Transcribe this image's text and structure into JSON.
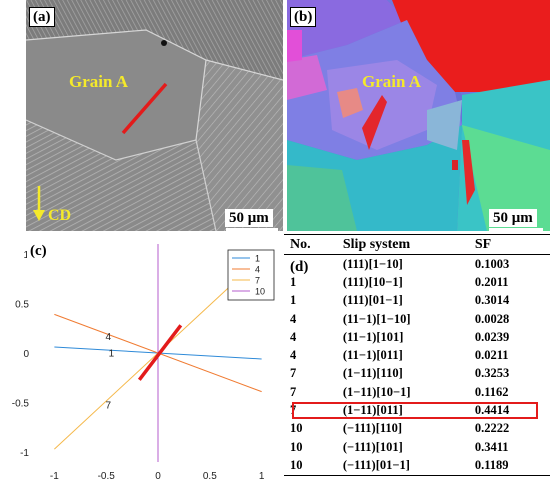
{
  "panel_a": {
    "tag": "(a)",
    "grain_label": "Grain A",
    "direction_label": "CD",
    "scale_bar": "50 μm"
  },
  "panel_b": {
    "tag": "(b)",
    "grain_label": "Grain A",
    "scale_bar": "50 μm"
  },
  "panel_c": {
    "tag": "(c)"
  },
  "chart_data": {
    "type": "line",
    "xlim": [
      -1.1,
      1.1
    ],
    "ylim": [
      -1.1,
      1.1
    ],
    "xticks": [
      "-1",
      "-0.5",
      "0",
      "0.5",
      "1"
    ],
    "yticks": [
      "-1",
      "-0.5",
      "0",
      "0.5",
      "1"
    ],
    "legend_position": "top-right",
    "series": [
      {
        "name": "1",
        "color": "#2e8ad8",
        "x": [
          -1,
          1
        ],
        "y": [
          0.06,
          -0.06
        ],
        "label": "1",
        "label_at": [
          -0.45,
          0.005
        ]
      },
      {
        "name": "4",
        "color": "#f07b32",
        "x": [
          -1,
          1
        ],
        "y": [
          0.39,
          -0.39
        ],
        "label": "4",
        "label_at": [
          -0.48,
          0.17
        ]
      },
      {
        "name": "7",
        "color": "#f5b84a",
        "x": [
          -1,
          0.95
        ],
        "y": [
          -0.97,
          0.92
        ],
        "label": "7",
        "label_at": [
          -0.48,
          -0.52
        ]
      },
      {
        "name": "10",
        "color": "#b45ccc",
        "x": [
          0,
          0
        ],
        "y": [
          -1.1,
          1.1
        ]
      }
    ],
    "highlight": {
      "color": "#e31b1b",
      "x": [
        -0.18,
        0.22
      ],
      "y": [
        -0.27,
        0.28
      ]
    }
  },
  "panel_d": {
    "tag": "(d)",
    "headers": [
      "No.",
      "Slip system",
      "SF"
    ],
    "rows": [
      [
        "1",
        "(111)[1−10]",
        "0.1003"
      ],
      [
        "1",
        "(111)[10−1]",
        "0.2011"
      ],
      [
        "1",
        "(111)[01−1]",
        "0.3014"
      ],
      [
        "4",
        "(11−1)[1−10]",
        "0.0028"
      ],
      [
        "4",
        "(11−1)[101]",
        "0.0239"
      ],
      [
        "4",
        "(11−1)[011]",
        "0.0211"
      ],
      [
        "7",
        "(1−11)[110]",
        "0.3253"
      ],
      [
        "7",
        "(1−11)[10−1]",
        "0.1162"
      ],
      [
        "7",
        "(1−11)[011]",
        "0.4414"
      ],
      [
        "10",
        "(−111)[110]",
        "0.2222"
      ],
      [
        "10",
        "(−111)[101]",
        "0.3411"
      ],
      [
        "10",
        "(−111)[01−1]",
        "0.1189"
      ]
    ],
    "highlighted_row": 8,
    "highlight_color": "#e31b1b"
  }
}
